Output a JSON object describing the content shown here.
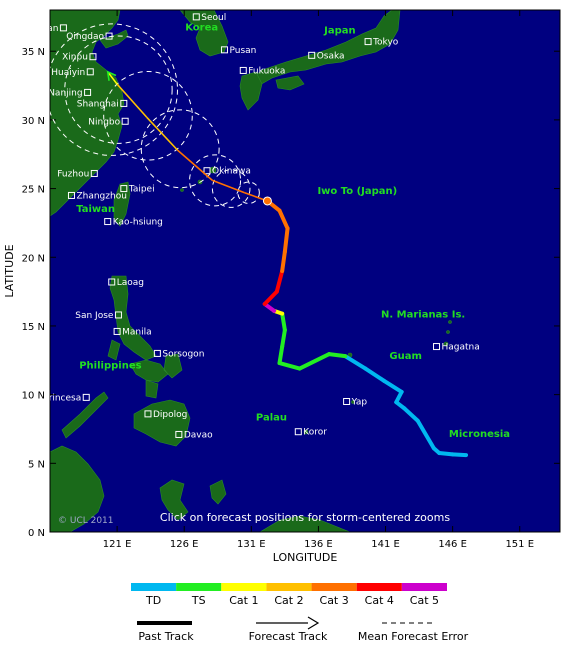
{
  "map": {
    "xlabel": "LONGITUDE",
    "ylabel": "LATITUDE",
    "lon_range": [
      116,
      154
    ],
    "lat_range": [
      0,
      38
    ],
    "ocean_color": "#000080",
    "land_color": "#1a6a1a",
    "lon_ticks": [
      {
        "value": 121,
        "label": "121 E"
      },
      {
        "value": 126,
        "label": "126 E"
      },
      {
        "value": 131,
        "label": "131 E"
      },
      {
        "value": 136,
        "label": "136 E"
      },
      {
        "value": 141,
        "label": "141 E"
      },
      {
        "value": 146,
        "label": "146 E"
      },
      {
        "value": 151,
        "label": "151 E"
      }
    ],
    "lat_ticks": [
      {
        "value": 0,
        "label": "0 N"
      },
      {
        "value": 5,
        "label": "5 N"
      },
      {
        "value": 10,
        "label": "10 N"
      },
      {
        "value": 15,
        "label": "15 N"
      },
      {
        "value": 20,
        "label": "20 N"
      },
      {
        "value": 25,
        "label": "25 N"
      },
      {
        "value": 30,
        "label": "30 N"
      },
      {
        "value": 35,
        "label": "35 N"
      }
    ],
    "cities": [
      {
        "name": "Jinan",
        "lon": 117.0,
        "lat": 36.7
      },
      {
        "name": "Qingdao",
        "lon": 120.4,
        "lat": 36.1
      },
      {
        "name": "Xinpu",
        "lon": 119.2,
        "lat": 34.6
      },
      {
        "name": "Huaiyin",
        "lon": 119.0,
        "lat": 33.5
      },
      {
        "name": "Nanjing",
        "lon": 118.8,
        "lat": 32.0
      },
      {
        "name": "Shanghai",
        "lon": 121.5,
        "lat": 31.2
      },
      {
        "name": "Ningbo",
        "lon": 121.6,
        "lat": 29.9
      },
      {
        "name": "Fuzhou",
        "lon": 119.3,
        "lat": 26.1
      },
      {
        "name": "Zhangzhou",
        "lon": 117.6,
        "lat": 24.5
      },
      {
        "name": "Taipei",
        "lon": 121.5,
        "lat": 25.0
      },
      {
        "name": "Kao-hsiung",
        "lon": 120.3,
        "lat": 22.6
      },
      {
        "name": "Seoul",
        "lon": 126.9,
        "lat": 37.5
      },
      {
        "name": "Pusan",
        "lon": 129.0,
        "lat": 35.1
      },
      {
        "name": "Fukuoka",
        "lon": 130.4,
        "lat": 33.6
      },
      {
        "name": "Osaka",
        "lon": 135.5,
        "lat": 34.7
      },
      {
        "name": "Tokyo",
        "lon": 139.7,
        "lat": 35.7
      },
      {
        "name": "Okinawa",
        "lon": 127.7,
        "lat": 26.3
      },
      {
        "name": "Laoag",
        "lon": 120.6,
        "lat": 18.2
      },
      {
        "name": "San Jose",
        "lon": 121.1,
        "lat": 15.8
      },
      {
        "name": "Manila",
        "lon": 121.0,
        "lat": 14.6
      },
      {
        "name": "Sorsogon",
        "lon": 124.0,
        "lat": 13.0
      },
      {
        "name": "Puerto Princesa",
        "lon": 118.7,
        "lat": 9.8
      },
      {
        "name": "Dipolog",
        "lon": 123.3,
        "lat": 8.6
      },
      {
        "name": "Davao",
        "lon": 125.6,
        "lat": 7.1
      },
      {
        "name": "Hagatna",
        "lon": 144.8,
        "lat": 13.5
      },
      {
        "name": "Yap",
        "lon": 138.1,
        "lat": 9.5
      },
      {
        "name": "Koror",
        "lon": 134.5,
        "lat": 7.3
      }
    ],
    "regions": [
      {
        "name": "Korea",
        "lon": 127.3,
        "lat": 36.5
      },
      {
        "name": "Japan",
        "lon": 137.6,
        "lat": 36.3
      },
      {
        "name": "Taiwan",
        "lon": 119.4,
        "lat": 23.3
      },
      {
        "name": "Iwo To (Japan)",
        "lon": 138.9,
        "lat": 24.6
      },
      {
        "name": "Philippines",
        "lon": 120.5,
        "lat": 11.9
      },
      {
        "name": "N. Marianas Is.",
        "lon": 143.8,
        "lat": 15.6
      },
      {
        "name": "Guam",
        "lon": 142.5,
        "lat": 12.6
      },
      {
        "name": "Palau",
        "lon": 132.5,
        "lat": 8.1
      },
      {
        "name": "Micronesia",
        "lon": 148.0,
        "lat": 6.9
      }
    ],
    "click_note": "Click on forecast positions for storm-centered zooms",
    "copyright": "© UCL 2011"
  },
  "track": {
    "past": [
      {
        "lon": 147.0,
        "lat": 5.6,
        "cat": "TD"
      },
      {
        "lon": 146.0,
        "lat": 5.65,
        "cat": "TD"
      },
      {
        "lon": 145.0,
        "lat": 5.75,
        "cat": "TD"
      },
      {
        "lon": 144.6,
        "lat": 6.1,
        "cat": "TD"
      },
      {
        "lon": 143.4,
        "lat": 8.1,
        "cat": "TD"
      },
      {
        "lon": 142.4,
        "lat": 9.0,
        "cat": "TD"
      },
      {
        "lon": 141.8,
        "lat": 9.45,
        "cat": "TD"
      },
      {
        "lon": 142.2,
        "lat": 10.2,
        "cat": "TD"
      },
      {
        "lon": 140.9,
        "lat": 11.0,
        "cat": "TD"
      },
      {
        "lon": 139.5,
        "lat": 11.9,
        "cat": "TD"
      },
      {
        "lon": 138.0,
        "lat": 12.8,
        "cat": "TD"
      },
      {
        "lon": 136.8,
        "lat": 12.95,
        "cat": "TS"
      },
      {
        "lon": 134.6,
        "lat": 11.9,
        "cat": "TS"
      },
      {
        "lon": 133.1,
        "lat": 12.3,
        "cat": "TS"
      },
      {
        "lon": 133.3,
        "lat": 13.5,
        "cat": "TS"
      },
      {
        "lon": 133.5,
        "lat": 14.7,
        "cat": "TS"
      },
      {
        "lon": 133.3,
        "lat": 15.9,
        "cat": "TS"
      },
      {
        "lon": 132.7,
        "lat": 16.1,
        "cat": "Cat 1"
      },
      {
        "lon": 132.0,
        "lat": 16.6,
        "cat": "Cat 5"
      },
      {
        "lon": 132.9,
        "lat": 17.5,
        "cat": "Cat 4"
      },
      {
        "lon": 133.3,
        "lat": 19.0,
        "cat": "Cat 4"
      },
      {
        "lon": 133.5,
        "lat": 20.4,
        "cat": "Cat 3"
      },
      {
        "lon": 133.7,
        "lat": 22.1,
        "cat": "Cat 3"
      },
      {
        "lon": 133.1,
        "lat": 23.4,
        "cat": "Cat 3"
      },
      {
        "lon": 132.2,
        "lat": 24.1,
        "cat": "Cat 3"
      }
    ],
    "forecast": [
      {
        "lon": 132.2,
        "lat": 24.1,
        "cat": "Cat 3"
      },
      {
        "lon": 130.5,
        "lat": 24.7,
        "cat": "Cat 3"
      },
      {
        "lon": 128.1,
        "lat": 25.6,
        "cat": "Cat 3"
      },
      {
        "lon": 125.5,
        "lat": 27.8,
        "cat": "Cat 2"
      },
      {
        "lon": 123.2,
        "lat": 30.2,
        "cat": "Cat 2"
      },
      {
        "lon": 121.0,
        "lat": 32.6,
        "cat": "Cat 1"
      },
      {
        "lon": 120.3,
        "lat": 33.5,
        "cat": "TS"
      }
    ],
    "error_circles": [
      {
        "lon": 130.8,
        "lat": 24.7,
        "r": 0.8
      },
      {
        "lon": 129.5,
        "lat": 25.0,
        "r": 1.4
      },
      {
        "lon": 128.3,
        "lat": 25.6,
        "r": 1.9
      },
      {
        "lon": 125.7,
        "lat": 27.9,
        "r": 2.9
      },
      {
        "lon": 123.3,
        "lat": 30.3,
        "r": 3.3
      },
      {
        "lon": 121.1,
        "lat": 32.2,
        "r": 4.0
      },
      {
        "lon": 120.6,
        "lat": 32.2,
        "r": 4.9
      }
    ],
    "current_position": {
      "lon": 132.2,
      "lat": 24.1
    }
  },
  "legend": {
    "categories": [
      {
        "label": "TD",
        "color": "#00b8f0"
      },
      {
        "label": "TS",
        "color": "#22ee22"
      },
      {
        "label": "Cat 1",
        "color": "#ffff00"
      },
      {
        "label": "Cat 2",
        "color": "#ffc000"
      },
      {
        "label": "Cat 3",
        "color": "#ff7000"
      },
      {
        "label": "Cat 4",
        "color": "#ff0000"
      },
      {
        "label": "Cat 5",
        "color": "#cc00cc"
      }
    ],
    "past_track_label": "Past Track",
    "forecast_track_label": "Forecast Track",
    "error_label": "Mean Forecast Error"
  }
}
